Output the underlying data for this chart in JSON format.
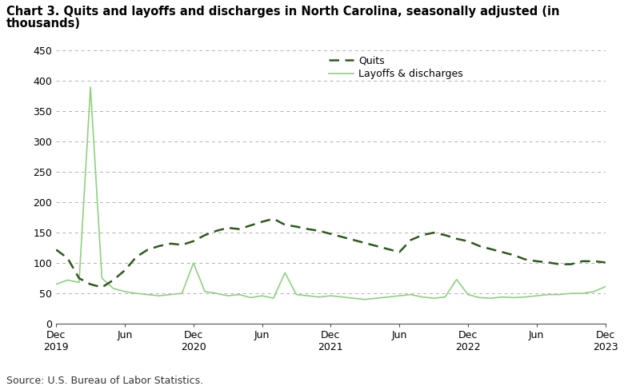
{
  "title_line1": "Chart 3. Quits and layoffs and discharges in North Carolina, seasonally adjusted (in",
  "title_line2": "thousands)",
  "source": "Source: U.S. Bureau of Labor Statistics.",
  "legend_entries": [
    "Quits",
    "Layoffs & discharges"
  ],
  "quits_color": "#2d5a1b",
  "layoffs_color": "#90d080",
  "ylim": [
    0,
    450
  ],
  "yticks": [
    0,
    50,
    100,
    150,
    200,
    250,
    300,
    350,
    400,
    450
  ],
  "x_tick_labels": [
    "Dec\n2019",
    "Jun",
    "Dec\n2020",
    "Jun",
    "Dec\n2021",
    "Jun",
    "Dec\n2022",
    "Jun",
    "Dec\n2023"
  ],
  "x_tick_positions": [
    0,
    6,
    12,
    18,
    24,
    30,
    36,
    42,
    48
  ],
  "quits": [
    122,
    108,
    75,
    65,
    60,
    72,
    88,
    110,
    122,
    128,
    132,
    130,
    136,
    146,
    153,
    158,
    156,
    162,
    168,
    173,
    163,
    160,
    156,
    153,
    148,
    143,
    138,
    133,
    128,
    123,
    118,
    138,
    146,
    150,
    146,
    140,
    136,
    128,
    123,
    118,
    113,
    106,
    103,
    101,
    98,
    98,
    103,
    103,
    101
  ],
  "layoffs": [
    65,
    72,
    68,
    390,
    75,
    58,
    53,
    50,
    48,
    46,
    48,
    50,
    100,
    53,
    50,
    46,
    48,
    43,
    46,
    42,
    84,
    48,
    46,
    44,
    46,
    44,
    42,
    40,
    42,
    44,
    46,
    48,
    44,
    42,
    44,
    73,
    48,
    43,
    42,
    44,
    43,
    44,
    46,
    48,
    48,
    50,
    50,
    53,
    61
  ],
  "background_color": "#ffffff",
  "grid_color": "#b0b0b0",
  "title_fontsize": 10.5,
  "legend_fontsize": 9,
  "tick_fontsize": 9,
  "source_fontsize": 9
}
